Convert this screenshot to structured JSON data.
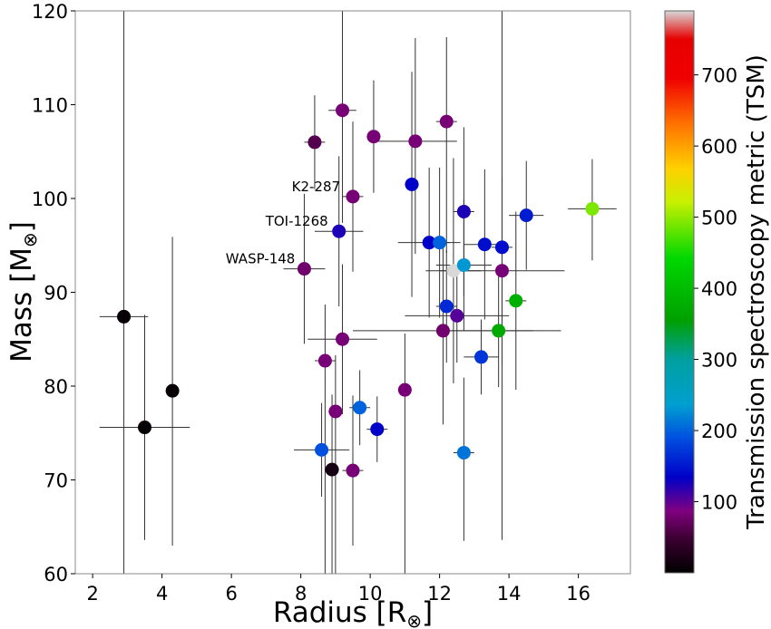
{
  "chart_data": {
    "type": "scatter",
    "title": "",
    "xlabel": "Radius [R",
    "xlabel_sub": "⊗",
    "xlabel_end": "]",
    "ylabel": "Mass [M",
    "ylabel_sub": "⊗",
    "ylabel_end": "]",
    "xlim": [
      1.5,
      17.5
    ],
    "ylim": [
      60,
      120
    ],
    "xticks": [
      2,
      4,
      6,
      8,
      10,
      12,
      14,
      16
    ],
    "yticks": [
      60,
      70,
      80,
      90,
      100,
      110,
      120
    ],
    "grid": false,
    "colorbar": {
      "label": "Transmission spectroscopy metric (TSM)",
      "range": [
        0,
        790
      ],
      "ticks": [
        100,
        200,
        300,
        400,
        500,
        600,
        700
      ]
    },
    "annotations": [
      {
        "text": "K2-287",
        "x": 9.45,
        "y": 100.2
      },
      {
        "text": "TOI-1268",
        "x": 9.1,
        "y": 96.5
      },
      {
        "text": "WASP-148",
        "x": 8.15,
        "y": 92.5
      }
    ],
    "points": [
      {
        "x": 2.9,
        "y": 87.4,
        "xerr": 0.7,
        "yerr_lo": 27.4,
        "yerr_hi": 33,
        "tsm": 5
      },
      {
        "x": 3.5,
        "y": 75.6,
        "xerr": 1.3,
        "yerr_lo": 12,
        "yerr_hi": 12,
        "tsm": 5
      },
      {
        "x": 4.3,
        "y": 79.5,
        "xerr": 0,
        "yerr_lo": 16.5,
        "yerr_hi": 16.4,
        "tsm": 5
      },
      {
        "x": 8.1,
        "y": 92.5,
        "xerr": 0.6,
        "yerr_lo": 8,
        "yerr_hi": 8,
        "tsm": 75
      },
      {
        "x": 8.4,
        "y": 106,
        "xerr": 0.3,
        "yerr_lo": 5,
        "yerr_hi": 5,
        "tsm": 60
      },
      {
        "x": 8.7,
        "y": 82.7,
        "xerr": 0.3,
        "yerr_lo": 22.7,
        "yerr_hi": 6,
        "tsm": 80
      },
      {
        "x": 8.9,
        "y": 71.1,
        "xerr": 0.2,
        "yerr_lo": 11.1,
        "yerr_hi": 8,
        "tsm": 15
      },
      {
        "x": 9.0,
        "y": 77.3,
        "xerr": 0.2,
        "yerr_lo": 17.3,
        "yerr_hi": 6,
        "tsm": 80
      },
      {
        "x": 9.2,
        "y": 109.4,
        "xerr": 0.4,
        "yerr_lo": 12,
        "yerr_hi": 10.6,
        "tsm": 80
      },
      {
        "x": 9.2,
        "y": 85,
        "xerr": 1.0,
        "yerr_lo": 8,
        "yerr_hi": 8,
        "tsm": 80
      },
      {
        "x": 9.1,
        "y": 96.5,
        "xerr": 0.7,
        "yerr_lo": 8,
        "yerr_hi": 8,
        "tsm": 120
      },
      {
        "x": 9.5,
        "y": 100.2,
        "xerr": 0.3,
        "yerr_lo": 8,
        "yerr_hi": 8,
        "tsm": 80
      },
      {
        "x": 9.5,
        "y": 71,
        "xerr": 0.3,
        "yerr_lo": 8,
        "yerr_hi": 8,
        "tsm": 80
      },
      {
        "x": 8.6,
        "y": 73.2,
        "xerr": 0.8,
        "yerr_lo": 5,
        "yerr_hi": 5,
        "tsm": 190
      },
      {
        "x": 9.7,
        "y": 77.7,
        "xerr": 0.3,
        "yerr_lo": 4,
        "yerr_hi": 4,
        "tsm": 200
      },
      {
        "x": 10.1,
        "y": 106.6,
        "xerr": 0.2,
        "yerr_lo": 6,
        "yerr_hi": 6,
        "tsm": 80
      },
      {
        "x": 10.2,
        "y": 75.4,
        "xerr": 0.3,
        "yerr_lo": 3.5,
        "yerr_hi": 3.5,
        "tsm": 130
      },
      {
        "x": 11.0,
        "y": 79.6,
        "xerr": 0.0,
        "yerr_lo": 19.6,
        "yerr_hi": 6,
        "tsm": 80
      },
      {
        "x": 11.3,
        "y": 106.1,
        "xerr": 1.2,
        "yerr_lo": 12,
        "yerr_hi": 11,
        "tsm": 80
      },
      {
        "x": 11.2,
        "y": 101.5,
        "xerr": 0.2,
        "yerr_lo": 12,
        "yerr_hi": 12,
        "tsm": 130
      },
      {
        "x": 11.7,
        "y": 95.3,
        "xerr": 0.9,
        "yerr_lo": 8,
        "yerr_hi": 8,
        "tsm": 130
      },
      {
        "x": 12.0,
        "y": 95.3,
        "xerr": 0.3,
        "yerr_lo": 8,
        "yerr_hi": 8,
        "tsm": 200
      },
      {
        "x": 12.2,
        "y": 108.2,
        "xerr": 0.3,
        "yerr_lo": 14,
        "yerr_hi": 9,
        "tsm": 80
      },
      {
        "x": 12.1,
        "y": 85.9,
        "xerr": 2.6,
        "yerr_lo": 10,
        "yerr_hi": 10,
        "tsm": 75
      },
      {
        "x": 12.2,
        "y": 88.5,
        "xerr": 0.3,
        "yerr_lo": 6,
        "yerr_hi": 6,
        "tsm": 160
      },
      {
        "x": 12.4,
        "y": 92.3,
        "xerr": 0.8,
        "yerr_lo": 12,
        "yerr_hi": 12,
        "tsm": 790
      },
      {
        "x": 12.5,
        "y": 87.5,
        "xerr": 1.5,
        "yerr_lo": 5,
        "yerr_hi": 5,
        "tsm": 100
      },
      {
        "x": 12.7,
        "y": 98.6,
        "xerr": 0.3,
        "yerr_lo": 9,
        "yerr_hi": 9,
        "tsm": 120
      },
      {
        "x": 12.7,
        "y": 92.9,
        "xerr": 0.8,
        "yerr_lo": 7,
        "yerr_hi": 7,
        "tsm": 230
      },
      {
        "x": 12.7,
        "y": 72.9,
        "xerr": 0.3,
        "yerr_lo": 9.4,
        "yerr_hi": 8,
        "tsm": 210
      },
      {
        "x": 13.2,
        "y": 83.1,
        "xerr": 0.5,
        "yerr_lo": 4,
        "yerr_hi": 4,
        "tsm": 170
      },
      {
        "x": 13.3,
        "y": 95.1,
        "xerr": 0.6,
        "yerr_lo": 8,
        "yerr_hi": 8,
        "tsm": 140
      },
      {
        "x": 13.7,
        "y": 85.9,
        "xerr": 1.8,
        "yerr_lo": 6,
        "yerr_hi": 6,
        "tsm": 370
      },
      {
        "x": 13.8,
        "y": 94.8,
        "xerr": 0.3,
        "yerr_lo": 31.2,
        "yerr_hi": 25.2,
        "tsm": 140
      },
      {
        "x": 13.8,
        "y": 92.3,
        "xerr": 1.8,
        "yerr_lo": 10,
        "yerr_hi": 10,
        "tsm": 80
      },
      {
        "x": 14.2,
        "y": 89.1,
        "xerr": 0.3,
        "yerr_lo": 9.5,
        "yerr_hi": 9.5,
        "tsm": 380
      },
      {
        "x": 14.5,
        "y": 98.2,
        "xerr": 0.5,
        "yerr_lo": 5.8,
        "yerr_hi": 5.8,
        "tsm": 150
      },
      {
        "x": 16.4,
        "y": 98.9,
        "xerr": 0.7,
        "yerr_lo": 5.5,
        "yerr_hi": 5.3,
        "tsm": 490
      }
    ]
  }
}
